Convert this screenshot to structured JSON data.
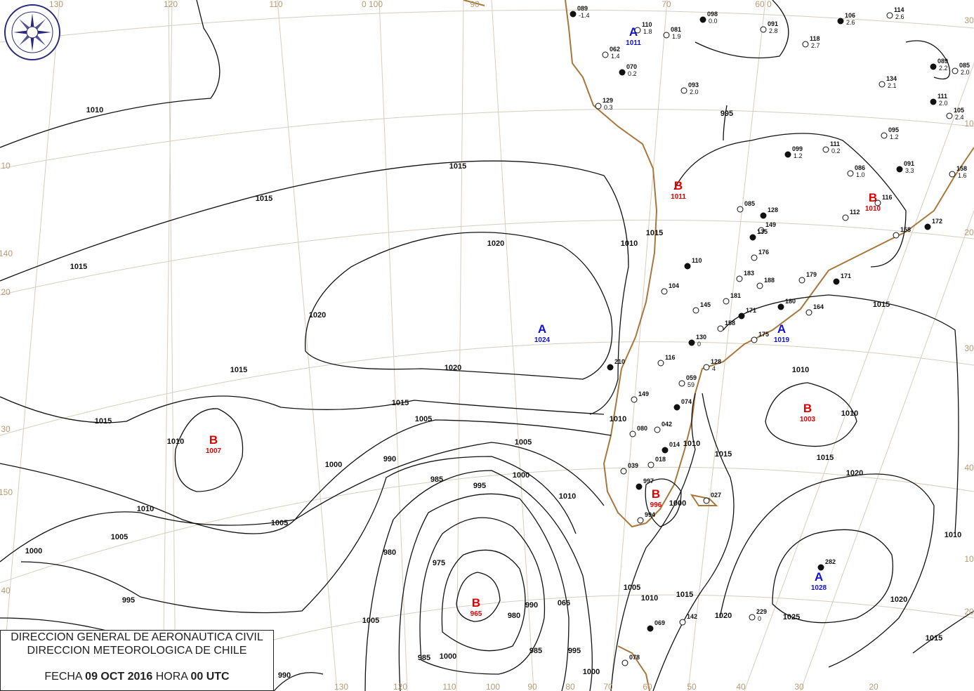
{
  "header_box": {
    "line1": "DIRECCION GENERAL DE AERONAUTICA CIVIL",
    "line2": "DIRECCION METEOROLOGICA DE CHILE",
    "date_label": "FECHA",
    "date": "09 OCT 2016",
    "hour_label": "HORA",
    "hour": "00 UTC"
  },
  "logo": {
    "text_top": "DIRECCION METEOROLOGICA",
    "text_bottom": "CHILE",
    "icon": "compass-rose-icon"
  },
  "colors": {
    "high": "#1010dd",
    "low": "#e00000",
    "isobar": "#111111",
    "coast": "#a9773a",
    "graticule": "#d8cdbd"
  },
  "pressure_centers": [
    {
      "type": "A",
      "value": "1024"
    },
    {
      "type": "B",
      "value": "1007"
    },
    {
      "type": "B",
      "value": "965"
    },
    {
      "type": "B",
      "value": "1003"
    },
    {
      "type": "B",
      "value": "996"
    },
    {
      "type": "A",
      "value": "1028"
    },
    {
      "type": "A",
      "value": "1011"
    },
    {
      "type": "B",
      "value": "1011"
    },
    {
      "type": "B",
      "value": "1010"
    },
    {
      "type": "A",
      "value": "1019"
    }
  ],
  "isobar_labels": [
    "1010",
    "1015",
    "1015",
    "1020",
    "1015",
    "1020",
    "1020",
    "1015",
    "1015",
    "1015",
    "1010",
    "1010",
    "1005",
    "1005",
    "1000",
    "990",
    "985",
    "995",
    "1000",
    "1010",
    "1005",
    "1000",
    "995",
    "980",
    "975",
    "980",
    "990",
    "985",
    "1000",
    "1005",
    "985",
    "066",
    "995",
    "1000",
    "1005",
    "1010",
    "1015",
    "1020",
    "1025",
    "1020",
    "1015",
    "1010",
    "1010",
    "1015",
    "1010",
    "1000",
    "1005",
    "1015",
    "1020",
    "1010",
    "990",
    "995",
    "1010",
    "1015",
    "1010",
    "1015"
  ],
  "graticule_labels": {
    "top": [
      "130",
      "120",
      "110",
      "0 100",
      "90",
      "70",
      "60 0"
    ],
    "bottom": [
      "130",
      "120",
      "110",
      "100",
      "90",
      "80",
      "70",
      "60",
      "50",
      "40",
      "30",
      "20"
    ],
    "left": [
      "10",
      "140",
      "20",
      "30",
      "150",
      "40"
    ],
    "right": [
      "10",
      "20",
      "30",
      "40",
      "10",
      "20",
      "30"
    ]
  },
  "stations": [
    {
      "code": "089",
      "val": "-1.4"
    },
    {
      "code": "110",
      "val": "1.8"
    },
    {
      "code": "081",
      "val": "1.9"
    },
    {
      "code": "098",
      "val": "0.0"
    },
    {
      "code": "091",
      "val": "2.8"
    },
    {
      "code": "118",
      "val": "2.7"
    },
    {
      "code": "106",
      "val": "2.6"
    },
    {
      "code": "114",
      "val": "2.6"
    },
    {
      "code": "062",
      "val": "1.4"
    },
    {
      "code": "070",
      "val": "0.2"
    },
    {
      "code": "093",
      "val": "2.0"
    },
    {
      "code": "129",
      "val": "0.3"
    },
    {
      "code": "089",
      "val": "2.2"
    },
    {
      "code": "085",
      "val": "2.0"
    },
    {
      "code": "134",
      "val": "2.1"
    },
    {
      "code": "111",
      "val": "2.0"
    },
    {
      "code": "105",
      "val": "2.4"
    },
    {
      "code": "095",
      "val": "1.2"
    },
    {
      "code": "099",
      "val": "1.2"
    },
    {
      "code": "111",
      "val": "0.2"
    },
    {
      "code": "086",
      "val": "1.0"
    },
    {
      "code": "091",
      "val": "3.3"
    },
    {
      "code": "158",
      "val": "1.6"
    },
    {
      "code": "085",
      "val": ""
    },
    {
      "code": "128",
      "val": ""
    },
    {
      "code": "116",
      "val": ""
    },
    {
      "code": "112",
      "val": ""
    },
    {
      "code": "172",
      "val": ""
    },
    {
      "code": "158",
      "val": ""
    },
    {
      "code": "149",
      "val": ""
    },
    {
      "code": "135",
      "val": ""
    },
    {
      "code": "176",
      "val": ""
    },
    {
      "code": "179",
      "val": ""
    },
    {
      "code": "171",
      "val": ""
    },
    {
      "code": "183",
      "val": ""
    },
    {
      "code": "188",
      "val": ""
    },
    {
      "code": "110",
      "val": ""
    },
    {
      "code": "104",
      "val": ""
    },
    {
      "code": "181",
      "val": ""
    },
    {
      "code": "180",
      "val": ""
    },
    {
      "code": "164",
      "val": ""
    },
    {
      "code": "145",
      "val": ""
    },
    {
      "code": "171",
      "val": ""
    },
    {
      "code": "158",
      "val": ""
    },
    {
      "code": "175",
      "val": ""
    },
    {
      "code": "130",
      "val": "0"
    },
    {
      "code": "128",
      "val": "4"
    },
    {
      "code": "116",
      "val": ""
    },
    {
      "code": "210",
      "val": ""
    },
    {
      "code": "059",
      "val": "59"
    },
    {
      "code": "149",
      "val": ""
    },
    {
      "code": "074",
      "val": ""
    },
    {
      "code": "042",
      "val": ""
    },
    {
      "code": "080",
      "val": ""
    },
    {
      "code": "014",
      "val": ""
    },
    {
      "code": "018",
      "val": ""
    },
    {
      "code": "039",
      "val": ""
    },
    {
      "code": "997",
      "val": ""
    },
    {
      "code": "994",
      "val": ""
    },
    {
      "code": "027",
      "val": ""
    },
    {
      "code": "282",
      "val": ""
    },
    {
      "code": "229",
      "val": "0"
    },
    {
      "code": "142",
      "val": ""
    },
    {
      "code": "069",
      "val": ""
    },
    {
      "code": "078",
      "val": ""
    }
  ]
}
